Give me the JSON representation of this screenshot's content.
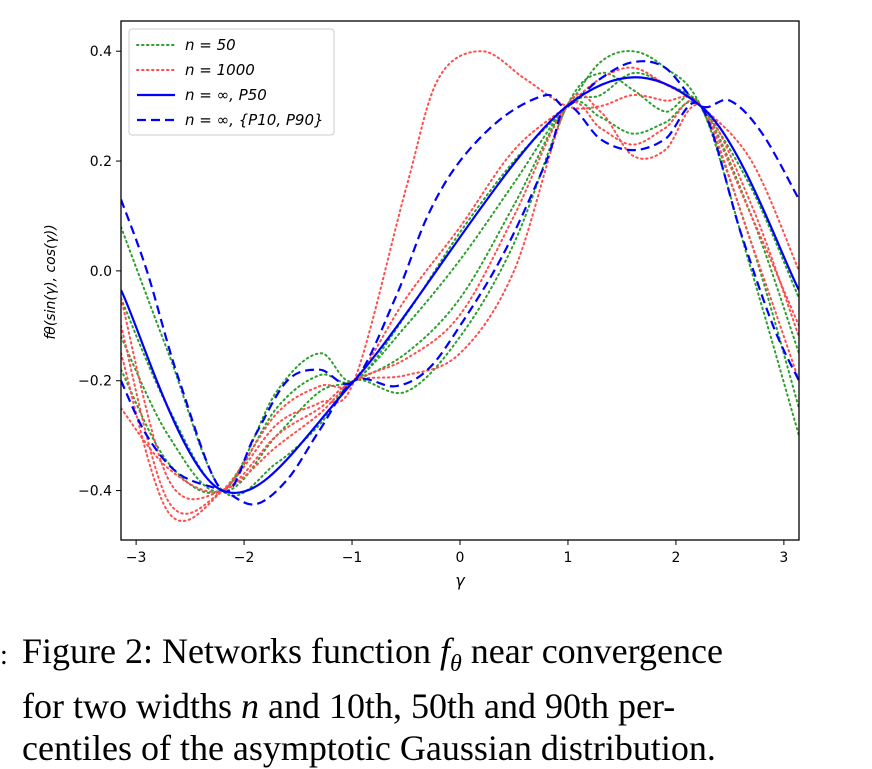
{
  "chart_data": {
    "type": "line",
    "xlabel": "γ",
    "ylabel": "fθ(sin(γ), cos(γ))",
    "xlim": [
      -3.14,
      3.14
    ],
    "ylim": [
      -0.49,
      0.455
    ],
    "xticks": [
      -3,
      -2,
      -1,
      0,
      1,
      2,
      3
    ],
    "xtick_labels": [
      "−3",
      "−2",
      "−1",
      "0",
      "1",
      "2",
      "3"
    ],
    "yticks": [
      -0.4,
      -0.2,
      0.0,
      0.2,
      0.4
    ],
    "ytick_labels": [
      "−0.4",
      "−0.2",
      "0.0",
      "0.2",
      "0.4"
    ],
    "legend_position": "top-left",
    "legend": [
      {
        "label": "n = 50",
        "color": "#2ca02c",
        "style": "dotted"
      },
      {
        "label": "n = 1000",
        "color": "#ff4d4d",
        "style": "dotted"
      },
      {
        "label": "n = ∞, P50",
        "color": "#0000ff",
        "style": "solid"
      },
      {
        "label": "n = ∞, {P10, P90}",
        "color": "#0000ff",
        "style": "dashed"
      }
    ],
    "series": [
      {
        "name": "n = ∞, P50",
        "color": "#0000ff",
        "style": "solid",
        "x": [
          -3.14,
          -2.2,
          -0.98,
          0.99,
          2.23,
          3.14
        ],
        "y": [
          -0.035,
          -0.4,
          -0.2,
          0.3,
          0.3,
          -0.035
        ]
      },
      {
        "name": "n = ∞, P10",
        "color": "#0000ff",
        "style": "dashed",
        "x": [
          -3.14,
          -2.9,
          -2.6,
          -2.2,
          -1.9,
          -1.6,
          -1.3,
          -0.98,
          -0.6,
          -0.3,
          0.0,
          0.4,
          0.8,
          0.99,
          1.3,
          1.6,
          1.9,
          2.23,
          2.6,
          2.9,
          3.14
        ],
        "y": [
          -0.2,
          -0.3,
          -0.37,
          -0.4,
          -0.425,
          -0.38,
          -0.29,
          -0.2,
          -0.21,
          -0.18,
          -0.1,
          0.03,
          0.2,
          0.3,
          0.24,
          0.22,
          0.24,
          0.3,
          0.07,
          -0.1,
          -0.2
        ]
      },
      {
        "name": "n = ∞, P90",
        "color": "#0000ff",
        "style": "dashed",
        "x": [
          -3.14,
          -2.9,
          -2.6,
          -2.2,
          -1.9,
          -1.6,
          -1.3,
          -0.98,
          -0.6,
          -0.3,
          0.0,
          0.4,
          0.8,
          0.99,
          1.3,
          1.6,
          1.9,
          2.23,
          2.5,
          2.8,
          3.14
        ],
        "y": [
          0.13,
          0.0,
          -0.2,
          -0.4,
          -0.3,
          -0.2,
          -0.18,
          -0.2,
          -0.05,
          0.1,
          0.2,
          0.28,
          0.32,
          0.3,
          0.35,
          0.38,
          0.37,
          0.3,
          0.31,
          0.25,
          0.13
        ]
      },
      {
        "name": "n = 50 (a)",
        "color": "#2ca02c",
        "style": "dotted",
        "x": [
          -3.14,
          -2.7,
          -2.2,
          -1.7,
          -1.3,
          -0.98,
          -0.5,
          0.0,
          0.5,
          0.99,
          1.3,
          1.6,
          1.9,
          2.23,
          2.7,
          3.14
        ],
        "y": [
          -0.12,
          -0.3,
          -0.4,
          -0.22,
          -0.15,
          -0.2,
          -0.08,
          0.07,
          0.2,
          0.3,
          0.38,
          0.4,
          0.37,
          0.3,
          0.05,
          -0.25
        ]
      },
      {
        "name": "n = 50 (b)",
        "color": "#2ca02c",
        "style": "dotted",
        "x": [
          -3.14,
          -2.7,
          -2.2,
          -1.7,
          -1.3,
          -0.98,
          -0.5,
          0.0,
          0.5,
          0.99,
          1.3,
          1.6,
          1.9,
          2.23,
          2.7,
          3.14
        ],
        "y": [
          -0.05,
          -0.25,
          -0.4,
          -0.3,
          -0.22,
          -0.2,
          -0.15,
          -0.05,
          0.12,
          0.3,
          0.28,
          0.25,
          0.27,
          0.3,
          0.1,
          -0.15
        ]
      },
      {
        "name": "n = 50 (c)",
        "color": "#2ca02c",
        "style": "dotted",
        "x": [
          -3.14,
          -2.7,
          -2.2,
          -1.7,
          -1.3,
          -0.98,
          -0.5,
          0.0,
          0.5,
          0.99,
          1.3,
          1.6,
          1.9,
          2.23,
          2.7,
          3.14
        ],
        "y": [
          0.08,
          -0.15,
          -0.4,
          -0.35,
          -0.28,
          -0.2,
          -0.22,
          -0.12,
          0.05,
          0.3,
          0.36,
          0.33,
          0.29,
          0.3,
          0.0,
          -0.3
        ]
      },
      {
        "name": "n = 50 (d)",
        "color": "#2ca02c",
        "style": "dotted",
        "x": [
          -3.14,
          -2.7,
          -2.2,
          -1.7,
          -1.3,
          -0.98,
          -0.5,
          0.0,
          0.5,
          0.99,
          1.3,
          1.6,
          1.9,
          2.23,
          2.7,
          3.14
        ],
        "y": [
          -0.18,
          -0.35,
          -0.4,
          -0.25,
          -0.19,
          -0.2,
          -0.1,
          0.02,
          0.16,
          0.3,
          0.32,
          0.36,
          0.34,
          0.3,
          0.15,
          -0.05
        ]
      },
      {
        "name": "n = 1000 (a)",
        "color": "#ff4d4d",
        "style": "dotted",
        "x": [
          -3.14,
          -2.7,
          -2.2,
          -1.7,
          -1.3,
          -0.98,
          -0.5,
          -0.2,
          0.2,
          0.6,
          0.99,
          1.3,
          1.6,
          1.9,
          2.23,
          2.7,
          3.14
        ],
        "y": [
          -0.1,
          -0.42,
          -0.4,
          -0.28,
          -0.24,
          -0.2,
          0.15,
          0.35,
          0.4,
          0.35,
          0.3,
          0.3,
          0.32,
          0.31,
          0.3,
          0.1,
          -0.1
        ]
      },
      {
        "name": "n = 1000 (b)",
        "color": "#ff4d4d",
        "style": "dotted",
        "x": [
          -3.14,
          -2.7,
          -2.2,
          -1.7,
          -1.3,
          -0.98,
          -0.5,
          0.0,
          0.5,
          0.99,
          1.3,
          1.6,
          1.9,
          2.23,
          2.7,
          3.14
        ],
        "y": [
          -0.05,
          -0.38,
          -0.4,
          -0.32,
          -0.26,
          -0.2,
          -0.16,
          -0.08,
          0.1,
          0.3,
          0.26,
          0.23,
          0.26,
          0.3,
          0.05,
          -0.2
        ]
      },
      {
        "name": "n = 1000 (c)",
        "color": "#ff4d4d",
        "style": "dotted",
        "x": [
          -3.14,
          -2.7,
          -2.2,
          -1.7,
          -1.3,
          -0.98,
          -0.5,
          0.0,
          0.5,
          0.99,
          1.3,
          1.6,
          1.9,
          2.23,
          2.7,
          3.14
        ],
        "y": [
          -0.15,
          -0.44,
          -0.4,
          -0.26,
          -0.21,
          -0.2,
          -0.05,
          0.08,
          0.22,
          0.3,
          0.35,
          0.37,
          0.34,
          0.3,
          0.2,
          0.0
        ]
      },
      {
        "name": "n = 1000 (d)",
        "color": "#ff4d4d",
        "style": "dotted",
        "x": [
          -3.14,
          -2.7,
          -2.2,
          -1.7,
          -1.3,
          -0.98,
          -0.5,
          0.0,
          0.5,
          0.99,
          1.3,
          1.6,
          1.9,
          2.23,
          2.7,
          3.14
        ],
        "y": [
          -0.25,
          -0.36,
          -0.4,
          -0.3,
          -0.25,
          -0.2,
          -0.19,
          -0.15,
          0.0,
          0.3,
          0.29,
          0.21,
          0.22,
          0.3,
          0.12,
          -0.12
        ]
      }
    ]
  },
  "caption": {
    "line1_a": "Figure 2: Networks function ",
    "line1_b": "f",
    "line1_c": "θ",
    "line1_d": " near convergence",
    "line2_a": "for two widths ",
    "line2_b": "n",
    "line2_c": " and 10th, 50th and 90th per-",
    "line3": "centiles of the asymptotic Gaussian distribution."
  }
}
